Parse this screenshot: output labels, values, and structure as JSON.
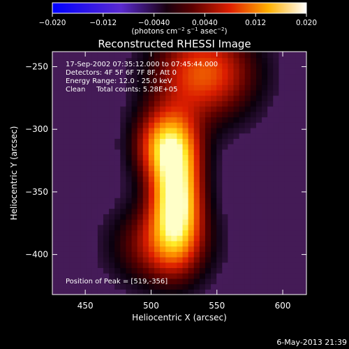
{
  "colorbar": {
    "ticks": [
      "−0.020",
      "−0.012",
      "−0.0040",
      "0.0040",
      "0.012",
      "0.020"
    ],
    "range": [
      -0.02,
      0.02
    ],
    "units_prefix": "(photons cm",
    "units_exp1": "−2",
    "units_mid": " s",
    "units_exp2": "−1",
    "units_mid2": " asec",
    "units_exp3": "−2",
    "units_suffix": ")"
  },
  "chart_data": {
    "type": "heatmap",
    "title": "Reconstructed RHESSI Image",
    "xlabel": "Heliocentric X (arcsec)",
    "ylabel": "Heliocentric Y (arcsec)",
    "xlim": [
      425,
      618
    ],
    "ylim": [
      -432,
      -238
    ],
    "xticks": [
      450,
      500,
      550,
      600
    ],
    "yticks": [
      -250,
      -300,
      -350,
      -400
    ],
    "xtick_labels": [
      "450",
      "500",
      "550",
      "600"
    ],
    "ytick_labels": [
      "−250",
      "−300",
      "−350",
      "−400"
    ],
    "colormap": "hot (purple-black-red-yellow-white)",
    "annotations": [
      "17-Sep-2002 07:35:12.000 to 07:45:44.000",
      "Detectors: 4F 5F 6F 7F 8F, Att 0",
      "Energy Range: 12.0 - 25.0 keV",
      "Clean     Total counts: 5.28E+05"
    ],
    "peak_label": "Position of Peak = [519,-356]",
    "peak": [
      519,
      -356
    ],
    "sources": [
      {
        "x": 519,
        "y": -356,
        "sx": 13,
        "sy": 30,
        "amp": 1.0
      },
      {
        "x": 512,
        "y": -312,
        "sx": 16,
        "sy": 20,
        "amp": 0.72
      },
      {
        "x": 540,
        "y": -255,
        "sx": 26,
        "sy": 25,
        "amp": 0.6
      },
      {
        "x": 508,
        "y": -392,
        "sx": 24,
        "sy": 22,
        "amp": 0.42
      }
    ]
  },
  "footer": {
    "timestamp": "6-May-2013 21:39"
  }
}
